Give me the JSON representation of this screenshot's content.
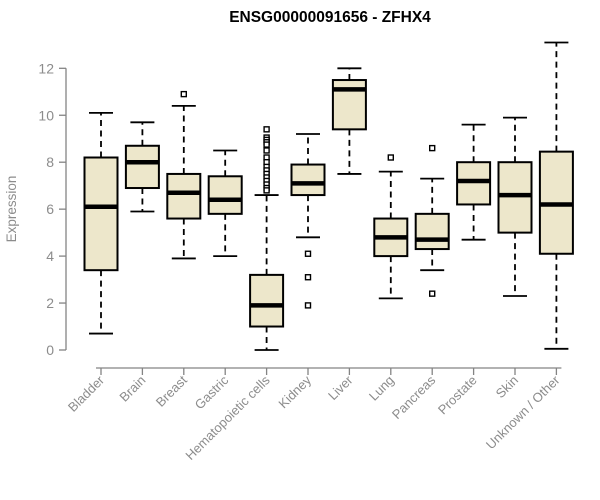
{
  "chart_data": {
    "type": "boxplot",
    "title": "ENSG00000091656 - ZFHX4",
    "ylabel": "Expression",
    "xlabel": "",
    "ylim": [
      0,
      12
    ],
    "yticks": [
      0,
      2,
      4,
      6,
      8,
      10,
      12
    ],
    "grid": false,
    "legend": "none",
    "categories": [
      "Bladder",
      "Brain",
      "Breast",
      "Gastric",
      "Hematopoietic cells",
      "Kidney",
      "Liver",
      "Lung",
      "Pancreas",
      "Prostate",
      "Skin",
      "Unknown / Other"
    ],
    "series": [
      {
        "category": "Bladder",
        "whisker_low": 0.7,
        "q1": 3.4,
        "median": 6.1,
        "q3": 8.2,
        "whisker_high": 10.1,
        "outliers": []
      },
      {
        "category": "Brain",
        "whisker_low": 5.9,
        "q1": 6.9,
        "median": 8.0,
        "q3": 8.7,
        "whisker_high": 9.7,
        "outliers": []
      },
      {
        "category": "Breast",
        "whisker_low": 3.9,
        "q1": 5.6,
        "median": 6.7,
        "q3": 7.5,
        "whisker_high": 10.4,
        "outliers": [
          10.9
        ]
      },
      {
        "category": "Gastric",
        "whisker_low": 4.0,
        "q1": 5.8,
        "median": 6.4,
        "q3": 7.4,
        "whisker_high": 8.5,
        "outliers": []
      },
      {
        "category": "Hematopoietic cells",
        "whisker_low": 0.0,
        "q1": 1.0,
        "median": 1.9,
        "q3": 3.2,
        "whisker_high": 6.6,
        "outliers": [
          9.4,
          9.05,
          8.95,
          8.85,
          8.75,
          8.5,
          8.2,
          8.0,
          7.8,
          7.65,
          7.5,
          7.35,
          7.2,
          7.05,
          6.9,
          6.8
        ]
      },
      {
        "category": "Kidney",
        "whisker_low": 4.8,
        "q1": 6.6,
        "median": 7.1,
        "q3": 7.9,
        "whisker_high": 9.2,
        "outliers": [
          4.1,
          3.1,
          1.9
        ]
      },
      {
        "category": "Liver",
        "whisker_low": 7.5,
        "q1": 9.4,
        "median": 11.1,
        "q3": 11.5,
        "whisker_high": 12.0,
        "outliers": []
      },
      {
        "category": "Lung",
        "whisker_low": 2.2,
        "q1": 4.0,
        "median": 4.8,
        "q3": 5.6,
        "whisker_high": 7.6,
        "outliers": [
          8.2
        ]
      },
      {
        "category": "Pancreas",
        "whisker_low": 3.4,
        "q1": 4.3,
        "median": 4.7,
        "q3": 5.8,
        "whisker_high": 7.3,
        "outliers": [
          8.6,
          2.4
        ]
      },
      {
        "category": "Prostate",
        "whisker_low": 4.7,
        "q1": 6.2,
        "median": 7.2,
        "q3": 8.0,
        "whisker_high": 9.6,
        "outliers": []
      },
      {
        "category": "Skin",
        "whisker_low": 2.3,
        "q1": 5.0,
        "median": 6.6,
        "q3": 8.0,
        "whisker_high": 9.9,
        "outliers": []
      },
      {
        "category": "Unknown / Other",
        "whisker_low": 0.05,
        "q1": 4.1,
        "median": 6.2,
        "q3": 8.45,
        "whisker_high": 13.1,
        "outliers": []
      }
    ],
    "colors": {
      "box_fill": "#ede7cb",
      "box_stroke": "#000000",
      "median": "#000000",
      "axis_line": "#848484",
      "axis_text": "#8c8c8c",
      "title_text": "#000000",
      "background": "#ffffff"
    }
  }
}
